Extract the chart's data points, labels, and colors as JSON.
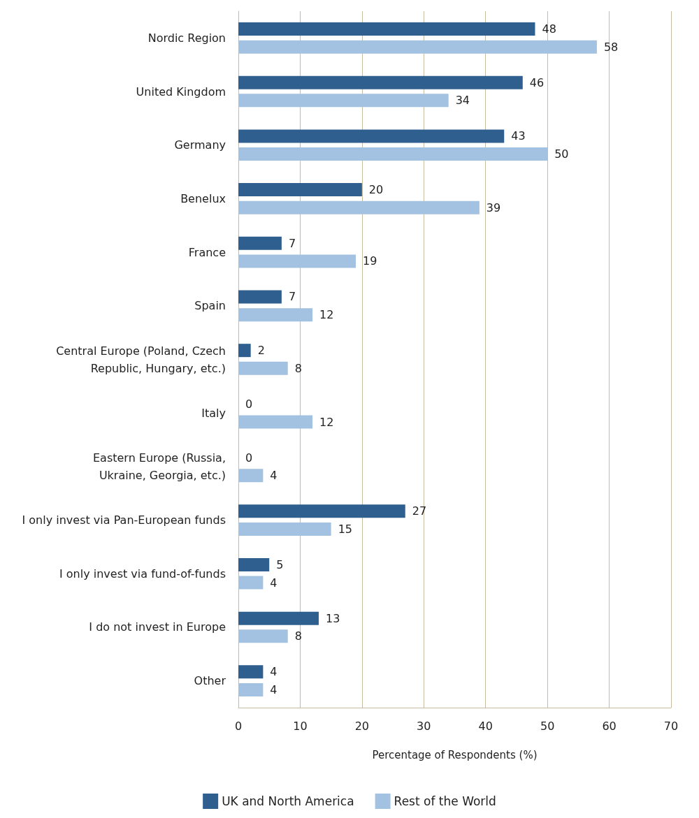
{
  "chart_data": {
    "type": "bar",
    "orientation": "horizontal",
    "categories": [
      "Nordic Region",
      "United Kingdom",
      "Germany",
      "Benelux",
      "France",
      "Spain",
      "Central Europe (Poland, Czech\nRepublic, Hungary, etc.)",
      "Italy",
      "Eastern Europe (Russia,\nUkraine, Georgia, etc.)",
      "I only invest via Pan-European funds",
      "I only invest via fund-of-funds",
      "I do not invest in Europe",
      "Other"
    ],
    "series": [
      {
        "name": "UK and North America",
        "color": "#2e5f8f",
        "values": [
          48,
          46,
          43,
          20,
          7,
          7,
          2,
          0,
          0,
          27,
          5,
          13,
          4
        ]
      },
      {
        "name": "Rest of the World",
        "color": "#a3c1e0",
        "values": [
          58,
          34,
          50,
          39,
          19,
          12,
          8,
          12,
          4,
          15,
          4,
          8,
          4
        ]
      }
    ],
    "xlabel": "Percentage of Respondents (%)",
    "xlim": [
      0,
      70
    ],
    "xticks": [
      0,
      10,
      20,
      30,
      40,
      50,
      60,
      70
    ],
    "grid": "x",
    "legend": "bottom",
    "data_labels": true
  }
}
